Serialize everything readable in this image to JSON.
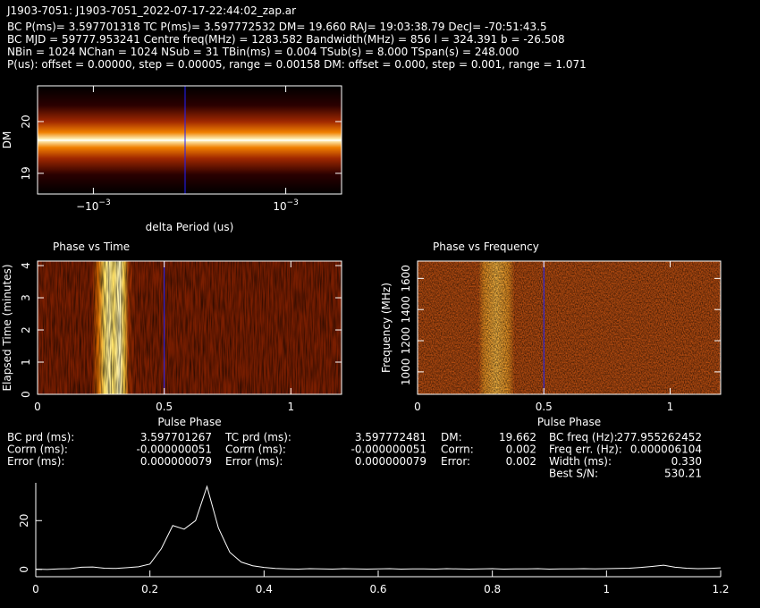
{
  "header": {
    "title": "J1903-7051: J1903-7051_2022-07-17-22:44:02_zap.ar",
    "lines": [
      "BC P(ms)= 3.597701318 TC P(ms)= 3.597772532 DM= 19.660 RAJ= 19:03:38.79 DecJ= -70:51:43.5",
      "BC MJD = 59777.953241 Centre freq(MHz) = 1283.582 Bandwidth(MHz) = 856 l = 324.391 b = -26.508",
      "NBin = 1024 NChan = 1024 NSub = 31 TBin(ms) = 0.004 TSub(s) = 8.000 TSpan(s) = 248.000",
      "P(us): offset = 0.00000, step = 0.00005, range = 0.00158 DM: offset = 0.000, step = 0.001, range = 1.071"
    ]
  },
  "chart_data": [
    {
      "type": "heatmap",
      "xlabel": "delta Period (us)",
      "ylabel": "DM",
      "xlim": [
        -0.00158,
        0.00158
      ],
      "ylim": [
        18.6,
        20.69
      ],
      "xticks": [
        {
          "value": -0.001,
          "label": "−10^−3"
        },
        {
          "value": 0.001,
          "label": "10^−3"
        }
      ],
      "yticks": [
        19,
        20
      ]
    },
    {
      "type": "heatmap",
      "title": "Phase vs Time",
      "xlabel": "Pulse Phase",
      "ylabel": "Elapsed Time (minutes)",
      "xlim": [
        0,
        1.2
      ],
      "ylim": [
        0,
        4.14
      ],
      "xticks": [
        0,
        0.5,
        1
      ],
      "yticks": [
        0,
        1,
        2,
        3,
        4
      ]
    },
    {
      "type": "heatmap",
      "title": "Phase vs Frequency",
      "xlabel": "Pulse Phase",
      "ylabel": "Frequency (MHz)",
      "xlim": [
        0,
        1.2
      ],
      "ylim": [
        856,
        1711
      ],
      "xticks": [
        0,
        0.5,
        1
      ],
      "yticks": [
        1000,
        1200,
        1400,
        1600
      ]
    },
    {
      "type": "line",
      "color": "#ffffff",
      "xlim": [
        0,
        1.2
      ],
      "ylim": [
        -3,
        35.5
      ],
      "xticks": [
        0,
        0.2,
        0.4,
        0.6,
        0.8,
        1,
        1.2
      ],
      "yticks": [
        0,
        20
      ],
      "x": [
        0,
        0.02,
        0.04,
        0.06,
        0.08,
        0.1,
        0.12,
        0.14,
        0.16,
        0.18,
        0.2,
        0.22,
        0.24,
        0.26,
        0.28,
        0.3,
        0.32,
        0.34,
        0.36,
        0.38,
        0.4,
        0.42,
        0.44,
        0.46,
        0.48,
        0.5,
        0.52,
        0.54,
        0.56,
        0.58,
        0.6,
        0.62,
        0.64,
        0.66,
        0.68,
        0.7,
        0.72,
        0.74,
        0.76,
        0.78,
        0.8,
        0.82,
        0.84,
        0.86,
        0.88,
        0.9,
        0.92,
        0.94,
        0.96,
        0.98,
        1,
        1.02,
        1.04,
        1.06,
        1.08,
        1.1,
        1.12,
        1.14,
        1.16,
        1.18,
        1.2
      ],
      "values": [
        0.1,
        0,
        0.2,
        0.3,
        0.9,
        1.0,
        0.5,
        0.4,
        0.7,
        1.1,
        2.2,
        8.5,
        18,
        16.5,
        20,
        34,
        17,
        7,
        3,
        1.5,
        0.8,
        0.4,
        0.2,
        0.1,
        0.3,
        0.2,
        0.1,
        0.3,
        0.2,
        0.1,
        0.2,
        0.3,
        0.1,
        0.2,
        0.2,
        0.1,
        0.3,
        0.2,
        0.1,
        0.2,
        0.3,
        0.1,
        0.2,
        0.2,
        0.3,
        0.1,
        0.2,
        0.2,
        0.3,
        0.2,
        0.3,
        0.4,
        0.5,
        0.8,
        1.2,
        1.7,
        0.9,
        0.5,
        0.3,
        0.4,
        0.6
      ]
    }
  ],
  "stats": [
    [
      [
        "BC prd (ms):",
        "3.597701267"
      ],
      [
        "Corrn (ms):",
        "-0.000000051"
      ],
      [
        "Error (ms):",
        "0.000000079"
      ]
    ],
    [
      [
        "TC prd (ms):",
        "3.597772481"
      ],
      [
        "Corrn (ms):",
        "-0.000000051"
      ],
      [
        "Error (ms):",
        "0.000000079"
      ]
    ],
    [
      [
        "DM:",
        "19.662"
      ],
      [
        "Corrn:",
        "0.002"
      ],
      [
        "Error:",
        "0.002"
      ]
    ],
    [
      [
        "BC freq (Hz):",
        "277.955262452"
      ],
      [
        "Freq err. (Hz):",
        "0.000006104"
      ],
      [
        "Width (ms):",
        "0.330"
      ],
      [
        "Best S/N:",
        "530.21"
      ]
    ]
  ]
}
